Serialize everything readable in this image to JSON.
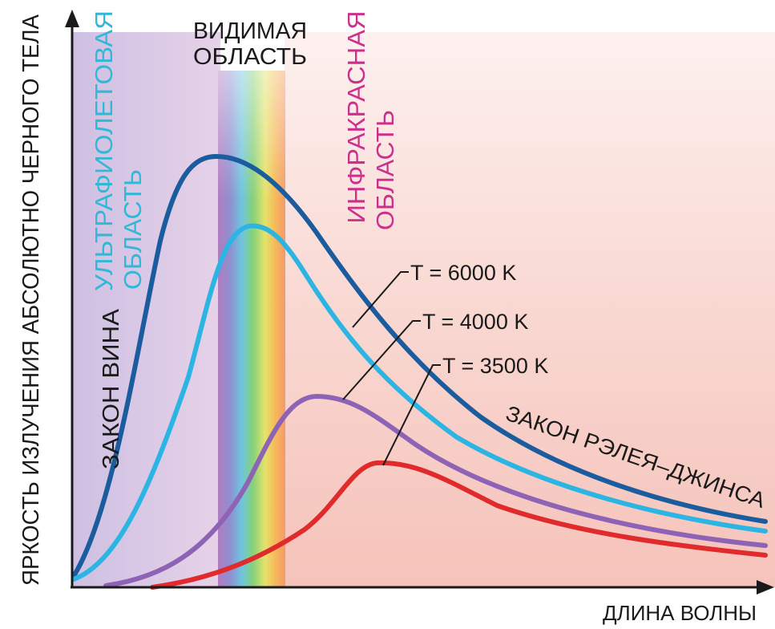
{
  "chart_data": {
    "type": "line",
    "ylabel": "ЯРКОСТЬ ИЗЛУЧЕНИЯ АБСОЛЮТНО ЧЕРНОГО ТЕЛА",
    "xlabel": "ДЛИНА ВОЛНЫ",
    "grid": false,
    "regions": [
      {
        "line1": "УЛЬТРАФИОЛЕТОВАЯ",
        "line2": "ОБЛАСТЬ",
        "color": "#2fb8d8"
      },
      {
        "line1": "ВИДИМАЯ",
        "line2": "ОБЛАСТЬ",
        "color": "#1a1a1a"
      },
      {
        "line1": "ИНФРАКРАСНАЯ",
        "line2": "ОБЛАСТЬ",
        "color": "#cc2f8c"
      }
    ],
    "annotations": {
      "wien": "ЗАКОН ВИНА",
      "rayleigh_jeans": "ЗАКОН РЭЛЕЯ–ДЖИНСА"
    },
    "series": [
      {
        "name": "T = 6000 K",
        "color": "#1a5c9e"
      },
      {
        "name": "T = 4000 K",
        "color": "#8e62b4"
      },
      {
        "name": "T = 3500 K",
        "color": "#e02a2c"
      },
      {
        "color": "#2cb5e2"
      }
    ]
  }
}
